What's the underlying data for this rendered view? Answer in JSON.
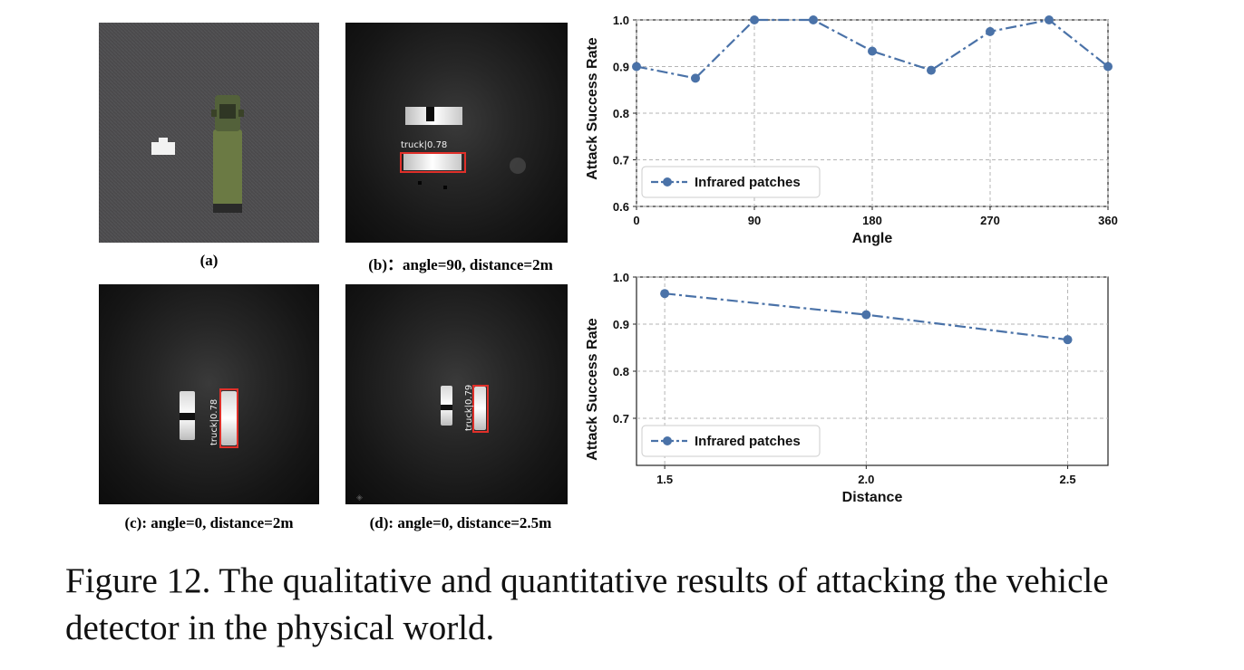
{
  "panels": {
    "a": {
      "caption": "(a)"
    },
    "b": {
      "caption": "(b)：angle=90, distance=2m",
      "detection": "truck|0.78"
    },
    "c": {
      "caption": "(c): angle=0, distance=2m",
      "detection": "truck|0.78"
    },
    "d": {
      "caption": "(d): angle=0, distance=2.5m",
      "detection": "truck|0.79"
    }
  },
  "chart_data": [
    {
      "type": "line",
      "xlabel": "Angle",
      "ylabel": "Attack Success Rate",
      "x_ticks": [
        0,
        90,
        180,
        270,
        360
      ],
      "y_ticks": [
        0.6,
        0.7,
        0.8,
        0.9,
        1.0
      ],
      "xlim": [
        0,
        360
      ],
      "ylim": [
        0.6,
        1.0
      ],
      "grid": true,
      "legend_position": "bottom-left",
      "series": [
        {
          "name": "Infrared patches",
          "color": "#4a72a8",
          "line_style": "dash-dot",
          "marker": "circle",
          "x": [
            0,
            45,
            90,
            135,
            180,
            225,
            270,
            315,
            360
          ],
          "values": [
            0.9,
            0.875,
            1.0,
            1.0,
            0.933,
            0.892,
            0.975,
            1.0,
            0.9
          ]
        }
      ]
    },
    {
      "type": "line",
      "xlabel": "Distance",
      "ylabel": "Attack Success Rate",
      "x_ticks": [
        1.5,
        2.0,
        2.5
      ],
      "y_ticks": [
        0.7,
        0.8,
        0.9,
        1.0
      ],
      "xlim": [
        1.43,
        2.6
      ],
      "ylim": [
        0.6,
        1.0
      ],
      "grid": true,
      "legend_position": "bottom-left",
      "series": [
        {
          "name": "Infrared patches",
          "color": "#4a72a8",
          "line_style": "dash-dot",
          "marker": "circle",
          "x": [
            1.5,
            2.0,
            2.5
          ],
          "values": [
            0.965,
            0.92,
            0.867
          ]
        }
      ]
    }
  ],
  "figure_caption": "Figure 12. The qualitative and quantitative results of attacking the vehicle detector in the physical world."
}
